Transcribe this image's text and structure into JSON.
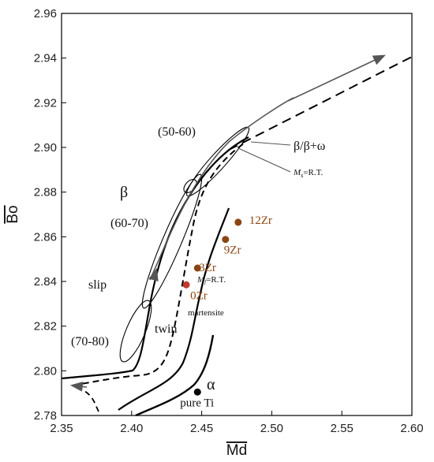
{
  "chart_data": {
    "type": "scatter",
    "xlabel": "Md",
    "ylabel": "Bo",
    "xlim": [
      2.35,
      2.6
    ],
    "ylim": [
      2.78,
      2.96
    ],
    "x_ticks": [
      "2.35",
      "2.40",
      "2.45",
      "2.50",
      "2.55",
      "2.60"
    ],
    "y_ticks": [
      "2.78",
      "2.80",
      "2.82",
      "2.84",
      "2.86",
      "2.88",
      "2.90",
      "2.92",
      "2.94",
      "2.96"
    ],
    "grid": false,
    "points": [
      {
        "label": "12Zr",
        "x": 2.476,
        "y": 2.8665,
        "color": "#8B4513"
      },
      {
        "label": "9Zr",
        "x": 2.467,
        "y": 2.8588,
        "color": "#8B4513"
      },
      {
        "label": "3Zr",
        "x": 2.447,
        "y": 2.846,
        "color": "#8B4513"
      },
      {
        "label": "0Zr",
        "x": 2.439,
        "y": 2.8385,
        "color": "#C0392B"
      },
      {
        "label": "pure Ti",
        "x": 2.447,
        "y": 2.7905,
        "color": "#000000"
      }
    ],
    "regions": [
      {
        "text": "β"
      },
      {
        "text": "slip"
      },
      {
        "text": "twin"
      },
      {
        "text": "α"
      },
      {
        "text": "martensite"
      },
      {
        "text": "(50-60)"
      },
      {
        "text": "(60-70)"
      },
      {
        "text": "(70-80)"
      }
    ],
    "line_labels": {
      "beta_omega": "β/β+ω",
      "ms_prefix": "M",
      "ms_sub": "s",
      "ms_suffix": "=R.T.",
      "mf_prefix": "M",
      "mf_sub": "f",
      "mf_suffix": "=R.T."
    },
    "colors": {
      "axis": "#000000",
      "curve": "#000000",
      "arrow": "#555555"
    }
  }
}
